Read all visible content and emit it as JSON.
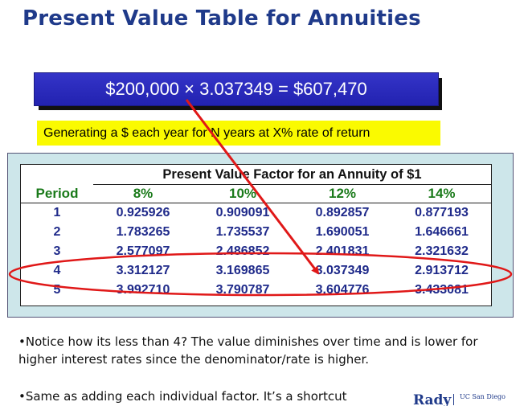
{
  "title": "Present Value Table for Annuities",
  "formula": "$200,000  × 3.037349 = $607,470",
  "note": "Generating a $ each year for N years at X% rate of return",
  "table": {
    "caption": "Present Value Factor for an Annuity of $1",
    "period_header": "Period",
    "rates": [
      "8%",
      "10%",
      "12%",
      "14%"
    ],
    "rows": [
      {
        "period": "1",
        "values": [
          "0.925926",
          "0.909091",
          "0.892857",
          "0.877193"
        ]
      },
      {
        "period": "2",
        "values": [
          "1.783265",
          "1.735537",
          "1.690051",
          "1.646661"
        ]
      },
      {
        "period": "3",
        "values": [
          "2.577097",
          "2.486852",
          "2.401831",
          "2.321632"
        ]
      },
      {
        "period": "4",
        "values": [
          "3.312127",
          "3.169865",
          "3.037349",
          "2.913712"
        ]
      },
      {
        "period": "5",
        "values": [
          "3.992710",
          "3.790787",
          "3.604776",
          "3.433081"
        ]
      }
    ]
  },
  "bullets": [
    "•Notice how its less than 4?  The value diminishes over time and is lower for higher interest rates since the denominator/rate is higher.",
    "•Same as adding each individual factor.  It’s a shortcut"
  ],
  "logo": {
    "name": "Rady",
    "sub": "UC San Diego"
  },
  "colors": {
    "title": "#1f3a8a",
    "formula_bg": "#2a2abc",
    "note_bg": "#fafa00",
    "frame_bg": "#cde6ea",
    "rate_header": "#1a7a1a",
    "values": "#1f2a8a",
    "annotation": "#e01818"
  }
}
